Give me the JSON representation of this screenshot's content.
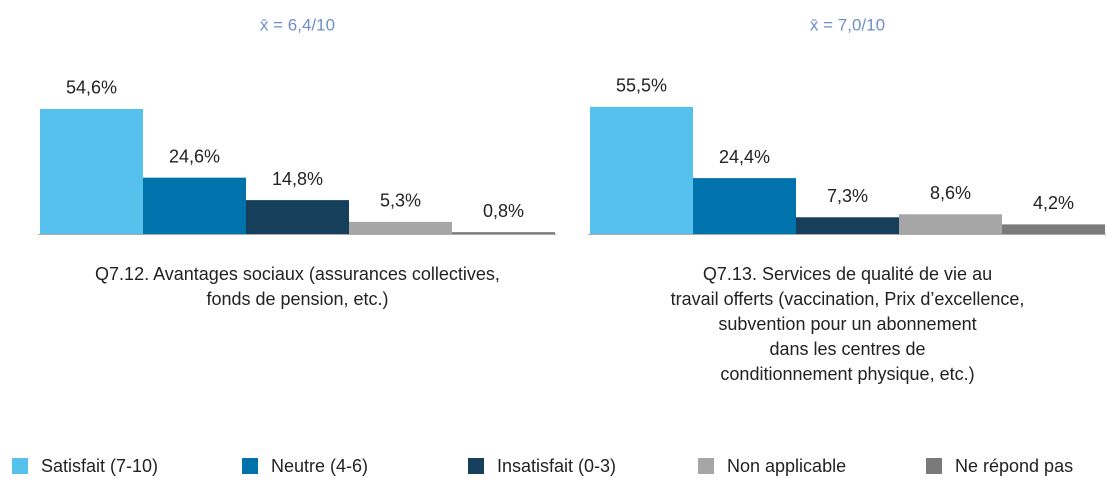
{
  "chart_data": {
    "type": "bar",
    "annotations": [
      "x̄ = 6,4/10",
      "x̄ = 7,0/10"
    ],
    "categories": [
      "Q7.12. Avantages sociaux (assurances collectives,\nfonds de pension, etc.)",
      "Q7.13. Services de qualité de vie au\ntravail offerts (vaccination, Prix d’excellence,\nsubvention pour un abonnement\ndans les centres de\nconditionnement physique, etc.)"
    ],
    "series": [
      {
        "name": "Satisfait (7-10)",
        "color": "#56c1ec",
        "values": [
          54.6,
          55.5
        ],
        "value_labels": [
          "54,6%",
          "55,5%"
        ]
      },
      {
        "name": "Neutre (4-6)",
        "color": "#0072ac",
        "values": [
          24.6,
          24.4
        ],
        "value_labels": [
          "24,6%",
          "24,4%"
        ]
      },
      {
        "name": "Insatisfait (0-3)",
        "color": "#163f5c",
        "values": [
          14.8,
          7.3
        ],
        "value_labels": [
          "14,8%",
          "7,3%"
        ]
      },
      {
        "name": "Non applicable",
        "color": "#a6a6a6",
        "values": [
          5.3,
          8.6
        ],
        "value_labels": [
          "5,3%",
          "8,6%"
        ]
      },
      {
        "name": "Ne répond pas",
        "color": "#7a7a7a",
        "values": [
          0.8,
          4.2
        ],
        "value_labels": [
          "0,8%",
          "4,2%"
        ]
      }
    ],
    "legend": "bottom"
  }
}
